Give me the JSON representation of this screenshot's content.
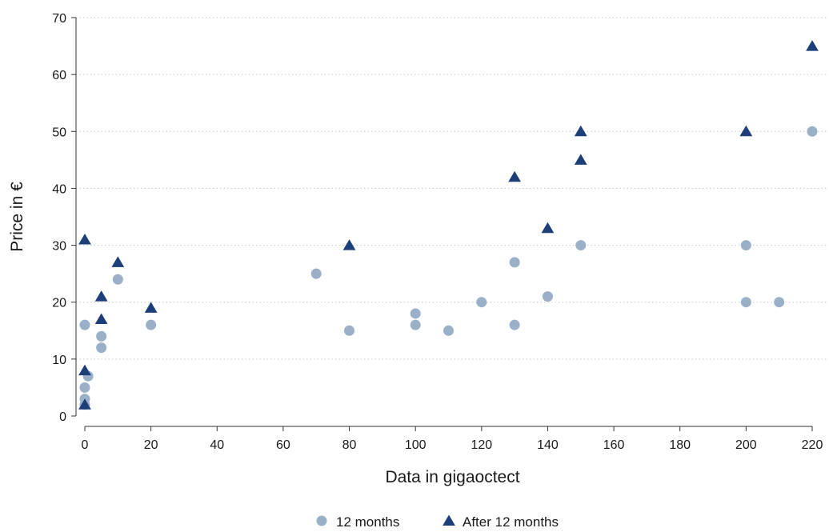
{
  "chart_data": {
    "type": "scatter",
    "title": "",
    "xlabel": "Data in gigaoctect",
    "ylabel": "Price in €",
    "xlim": [
      0,
      220
    ],
    "ylim": [
      0,
      70
    ],
    "xticks": [
      0,
      20,
      40,
      60,
      80,
      100,
      120,
      140,
      160,
      180,
      200,
      220
    ],
    "yticks": [
      0,
      10,
      20,
      30,
      40,
      50,
      60,
      70
    ],
    "grid": "horizontal dotted",
    "legend_position": "bottom",
    "series": [
      {
        "name": "12 months",
        "marker": "circle",
        "color": "#9aafc8",
        "points": [
          [
            0,
            16
          ],
          [
            0,
            5
          ],
          [
            0,
            3
          ],
          [
            0,
            2
          ],
          [
            1,
            7
          ],
          [
            5,
            14
          ],
          [
            5,
            12
          ],
          [
            10,
            24
          ],
          [
            20,
            16
          ],
          [
            70,
            25
          ],
          [
            80,
            15
          ],
          [
            100,
            18
          ],
          [
            100,
            16
          ],
          [
            110,
            15
          ],
          [
            120,
            20
          ],
          [
            130,
            27
          ],
          [
            130,
            16
          ],
          [
            140,
            21
          ],
          [
            150,
            30
          ],
          [
            200,
            30
          ],
          [
            200,
            20
          ],
          [
            210,
            20
          ],
          [
            220,
            50
          ]
        ]
      },
      {
        "name": "After 12 months",
        "marker": "triangle",
        "color": "#1c3f7a",
        "points": [
          [
            0,
            31
          ],
          [
            0,
            8
          ],
          [
            0,
            2
          ],
          [
            5,
            21
          ],
          [
            5,
            17
          ],
          [
            10,
            27
          ],
          [
            20,
            19
          ],
          [
            80,
            30
          ],
          [
            130,
            42
          ],
          [
            140,
            33
          ],
          [
            150,
            50
          ],
          [
            150,
            45
          ],
          [
            200,
            50
          ],
          [
            220,
            65
          ]
        ]
      }
    ]
  }
}
